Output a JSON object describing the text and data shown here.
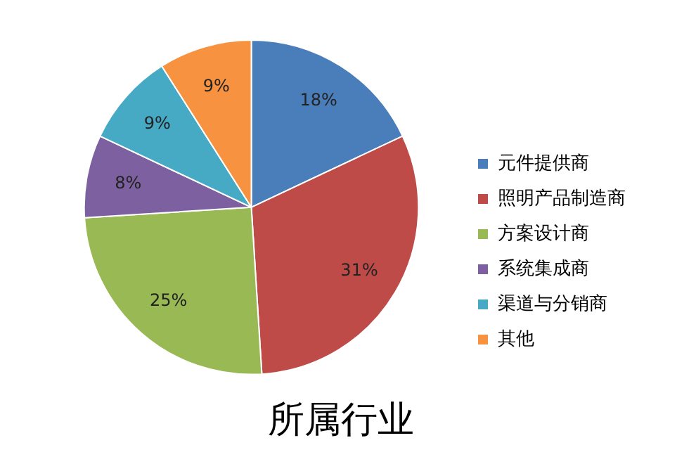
{
  "chart_data": {
    "type": "pie",
    "title": "所属行业",
    "categories": [
      "元件提供商",
      "照明产品制造商",
      "方案设计商",
      "系统集成商",
      "渠道与分销商",
      "其他"
    ],
    "values": [
      18,
      31,
      25,
      8,
      9,
      9
    ],
    "colors": [
      "#4a7ebb",
      "#be4b48",
      "#98b954",
      "#7d60a0",
      "#46aac5",
      "#f69240"
    ],
    "value_labels": [
      "18%",
      "31%",
      "25%",
      "8%",
      "9%",
      "9%"
    ],
    "legend": "right"
  }
}
